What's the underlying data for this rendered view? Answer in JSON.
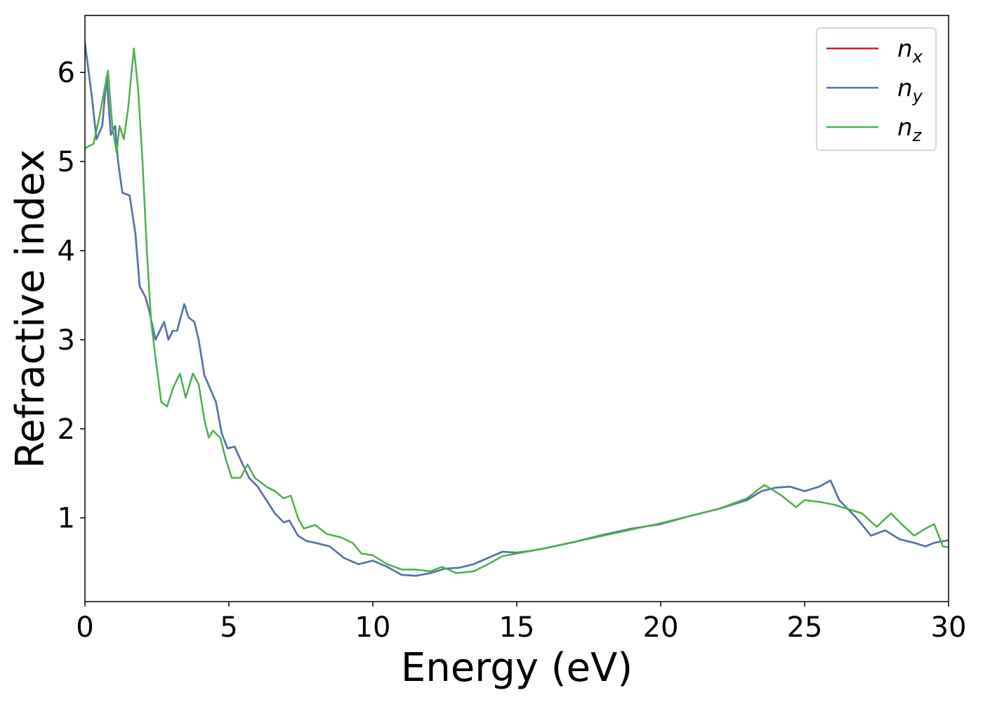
{
  "chart_data": {
    "type": "line",
    "xlabel": "Energy (eV)",
    "ylabel": "Refractive index",
    "xlim": [
      0,
      30
    ],
    "ylim": [
      0.06,
      6.64
    ],
    "xticks": [
      0,
      5,
      10,
      15,
      20,
      25,
      30
    ],
    "yticks": [
      1,
      2,
      3,
      4,
      5,
      6
    ],
    "legend": "upper right",
    "series": [
      {
        "name": "nx",
        "color": "#e41a1c",
        "x": [
          0,
          0.25,
          0.4,
          0.6,
          0.75,
          0.9,
          1.05,
          1.15,
          1.3,
          1.55,
          1.75,
          1.9,
          2.1,
          2.25,
          2.45,
          2.6,
          2.75,
          2.9,
          3.05,
          3.2,
          3.45,
          3.6,
          3.8,
          3.95,
          4.15,
          4.35,
          4.55,
          4.75,
          4.95,
          5.2,
          5.45,
          5.7,
          6.0,
          6.3,
          6.6,
          6.9,
          7.1,
          7.4,
          7.7,
          8.0,
          8.5,
          9.0,
          9.5,
          10,
          10.5,
          11,
          11.5,
          12,
          12.5,
          13,
          13.5,
          14,
          14.5,
          15,
          15.5,
          16,
          17,
          18,
          19,
          20,
          21,
          22,
          23,
          23.5,
          24,
          24.5,
          25,
          25.5,
          25.9,
          26.2,
          26.8,
          27.3,
          27.8,
          28.3,
          28.8,
          29.2,
          29.5,
          30
        ],
        "values": [
          6.33,
          5.7,
          5.25,
          5.4,
          5.95,
          5.3,
          5.4,
          5.0,
          4.65,
          4.62,
          4.2,
          3.6,
          3.48,
          3.3,
          3.0,
          3.1,
          3.2,
          3.0,
          3.1,
          3.1,
          3.4,
          3.25,
          3.2,
          3.0,
          2.6,
          2.45,
          2.3,
          1.95,
          1.78,
          1.8,
          1.62,
          1.45,
          1.35,
          1.2,
          1.05,
          0.95,
          0.97,
          0.8,
          0.74,
          0.72,
          0.68,
          0.55,
          0.48,
          0.52,
          0.45,
          0.36,
          0.35,
          0.38,
          0.43,
          0.44,
          0.48,
          0.55,
          0.62,
          0.61,
          0.63,
          0.66,
          0.73,
          0.81,
          0.88,
          0.93,
          1.02,
          1.1,
          1.2,
          1.3,
          1.34,
          1.35,
          1.3,
          1.35,
          1.42,
          1.2,
          1.0,
          0.8,
          0.86,
          0.76,
          0.72,
          0.68,
          0.72,
          0.75
        ]
      },
      {
        "name": "ny",
        "color": "#4a77b0",
        "x": [
          0,
          0.25,
          0.4,
          0.6,
          0.75,
          0.9,
          1.05,
          1.15,
          1.3,
          1.55,
          1.75,
          1.9,
          2.1,
          2.25,
          2.45,
          2.6,
          2.75,
          2.9,
          3.05,
          3.2,
          3.45,
          3.6,
          3.8,
          3.95,
          4.15,
          4.35,
          4.55,
          4.75,
          4.95,
          5.2,
          5.45,
          5.7,
          6.0,
          6.3,
          6.6,
          6.9,
          7.1,
          7.4,
          7.7,
          8.0,
          8.5,
          9.0,
          9.5,
          10,
          10.5,
          11,
          11.5,
          12,
          12.5,
          13,
          13.5,
          14,
          14.5,
          15,
          15.5,
          16,
          17,
          18,
          19,
          20,
          21,
          22,
          23,
          23.5,
          24,
          24.5,
          25,
          25.5,
          25.9,
          26.2,
          26.8,
          27.3,
          27.8,
          28.3,
          28.8,
          29.2,
          29.5,
          30
        ],
        "values": [
          6.33,
          5.7,
          5.25,
          5.4,
          5.95,
          5.3,
          5.4,
          5.0,
          4.65,
          4.62,
          4.2,
          3.6,
          3.48,
          3.3,
          3.0,
          3.1,
          3.2,
          3.0,
          3.1,
          3.1,
          3.4,
          3.25,
          3.2,
          3.0,
          2.6,
          2.45,
          2.3,
          1.95,
          1.78,
          1.8,
          1.62,
          1.45,
          1.35,
          1.2,
          1.05,
          0.95,
          0.97,
          0.8,
          0.74,
          0.72,
          0.68,
          0.55,
          0.48,
          0.52,
          0.45,
          0.36,
          0.35,
          0.38,
          0.43,
          0.44,
          0.48,
          0.55,
          0.62,
          0.61,
          0.63,
          0.66,
          0.73,
          0.81,
          0.88,
          0.93,
          1.02,
          1.1,
          1.2,
          1.3,
          1.34,
          1.35,
          1.3,
          1.35,
          1.42,
          1.2,
          1.0,
          0.8,
          0.86,
          0.76,
          0.72,
          0.68,
          0.72,
          0.75
        ]
      },
      {
        "name": "nz",
        "color": "#4daf4a",
        "x": [
          0,
          0.3,
          0.5,
          0.8,
          0.95,
          1.1,
          1.2,
          1.35,
          1.5,
          1.7,
          1.85,
          2.0,
          2.15,
          2.3,
          2.45,
          2.65,
          2.85,
          3.05,
          3.3,
          3.5,
          3.75,
          3.95,
          4.15,
          4.3,
          4.45,
          4.7,
          4.9,
          5.1,
          5.4,
          5.65,
          5.9,
          6.3,
          6.6,
          6.9,
          7.15,
          7.4,
          7.6,
          8.0,
          8.4,
          8.9,
          9.3,
          9.6,
          10,
          10.5,
          11,
          11.5,
          12,
          12.4,
          12.9,
          13.5,
          14,
          14.5,
          15,
          16,
          17,
          18,
          19,
          20,
          21,
          22,
          23,
          23.6,
          24.2,
          24.7,
          25,
          25.5,
          26,
          26.5,
          27,
          27.5,
          28,
          28.3,
          28.8,
          29.2,
          29.5,
          29.8,
          30
        ],
        "values": [
          5.15,
          5.2,
          5.5,
          6.02,
          5.4,
          5.1,
          5.4,
          5.25,
          5.6,
          6.27,
          5.8,
          5.0,
          4.0,
          3.2,
          2.8,
          2.3,
          2.25,
          2.45,
          2.62,
          2.35,
          2.62,
          2.5,
          2.1,
          1.9,
          1.98,
          1.9,
          1.65,
          1.45,
          1.45,
          1.6,
          1.45,
          1.35,
          1.3,
          1.22,
          1.25,
          1.0,
          0.88,
          0.92,
          0.82,
          0.78,
          0.72,
          0.6,
          0.58,
          0.48,
          0.42,
          0.42,
          0.4,
          0.45,
          0.38,
          0.4,
          0.48,
          0.57,
          0.6,
          0.66,
          0.73,
          0.8,
          0.87,
          0.94,
          1.02,
          1.1,
          1.22,
          1.37,
          1.25,
          1.12,
          1.2,
          1.18,
          1.15,
          1.1,
          1.05,
          0.9,
          1.05,
          0.95,
          0.8,
          0.88,
          0.93,
          0.68,
          0.67
        ]
      }
    ]
  }
}
